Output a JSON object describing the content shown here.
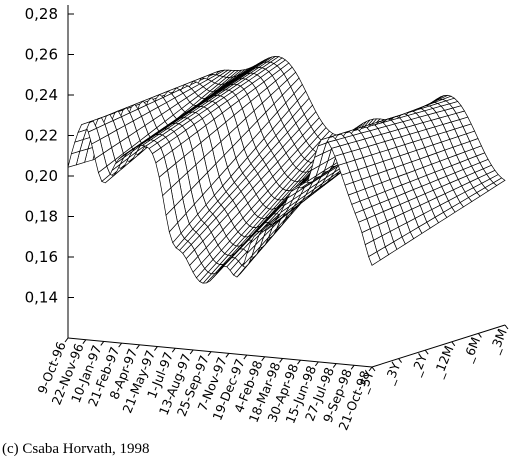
{
  "credit": "(c) Csaba Horvath, 1998",
  "chart_data": {
    "type": "surface",
    "title": "",
    "xlabel": "",
    "ylabel": "",
    "zlabel": "",
    "ylim": [
      0.12,
      0.28
    ],
    "yticks": [
      0.14,
      0.16,
      0.18,
      0.2,
      0.22,
      0.24,
      0.26,
      0.28
    ],
    "ytick_labels": [
      "0,14",
      "0,16",
      "0,18",
      "0,20",
      "0,22",
      "0,24",
      "0,26",
      "0,28"
    ],
    "x_dates": [
      "9-Oct-96",
      "22-Nov-96",
      "10-Jan-97",
      "21-Feb-97",
      "8-Apr-97",
      "21-May-97",
      "1-Jul-97",
      "13-Aug-97",
      "25-Sep-97",
      "7-Nov-97",
      "19-Dec-97",
      "4-Feb-98",
      "18-Mar-98",
      "30-Apr-98",
      "15-Jun-98",
      "27-Jul-98",
      "9-Sep-98",
      "21-Oct-98"
    ],
    "maturities": [
      "_5Y",
      "_3Y",
      "_2Y",
      "_12M",
      "_6M",
      "_3M"
    ],
    "grid": false,
    "mesh_style": "wireframe"
  }
}
